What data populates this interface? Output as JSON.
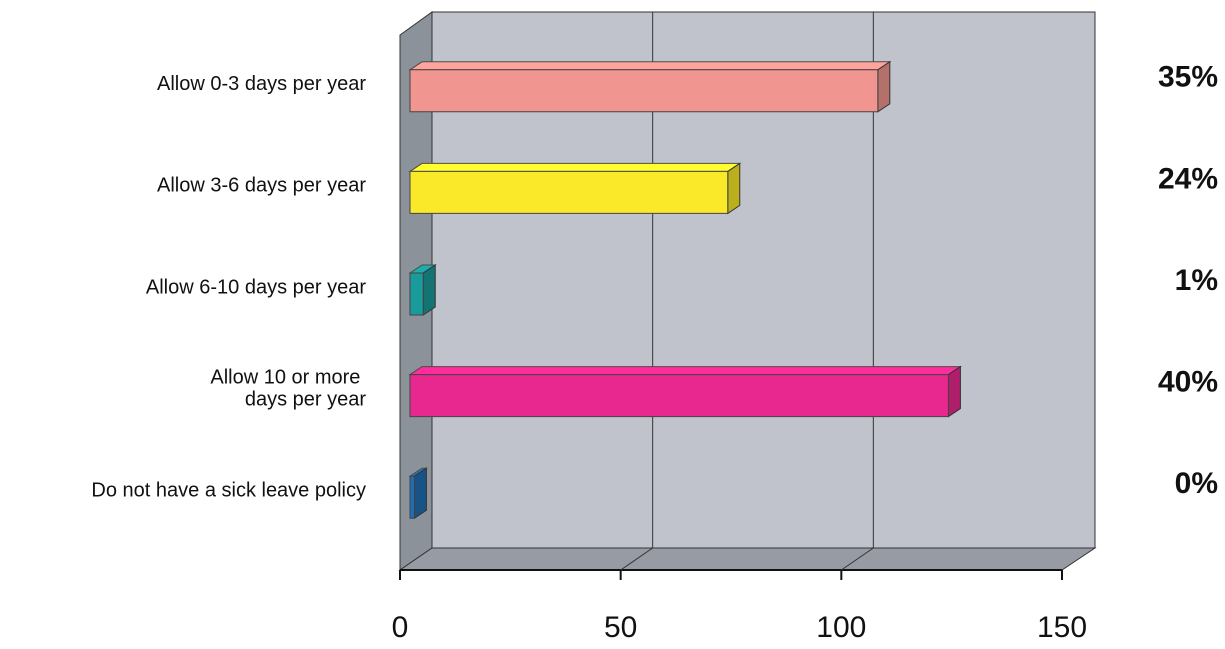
{
  "chart_data": {
    "type": "bar",
    "orientation": "horizontal",
    "categories": [
      "Allow 0-3 days per year",
      "Allow 3-6 days per year",
      "Allow 6-10 days per year",
      "Allow 10 or more \ndays per year",
      "Do not have a sick leave policy"
    ],
    "values": [
      106,
      72,
      3,
      122,
      1
    ],
    "colors": [
      "#f0958f",
      "#f9e928",
      "#1a9b9b",
      "#e8288f",
      "#1f6fb3"
    ],
    "annotations": [
      "35%",
      "24%",
      "1%",
      "40%",
      "0%"
    ],
    "xlim": [
      0,
      150
    ],
    "xticks": [
      0,
      50,
      100,
      150
    ],
    "grid": true
  }
}
